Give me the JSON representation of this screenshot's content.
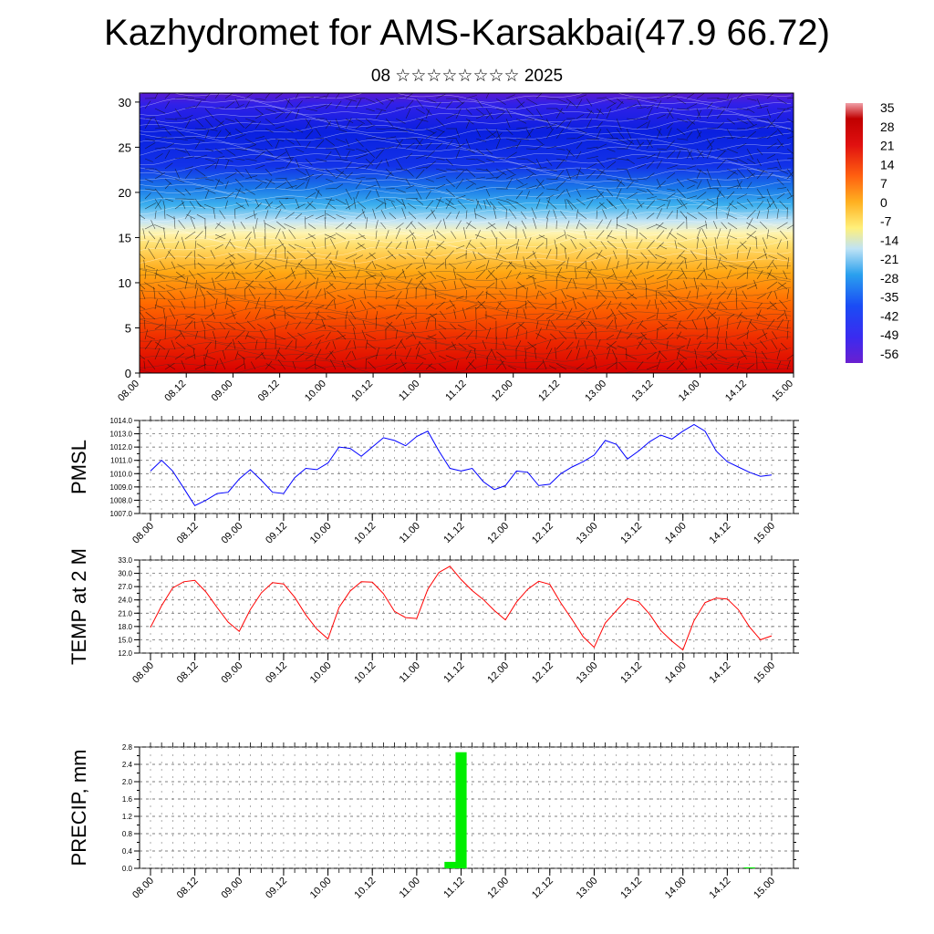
{
  "title": "Kazhydromet for AMS-Karsakbai(47.9 66.72)",
  "subtitle": "08 ☆☆☆☆☆☆☆☆ 2025",
  "chart_data": [
    {
      "type": "heatmap",
      "title": "",
      "x_tick_labels": [
        "08.00",
        "08.12",
        "09.00",
        "09.12",
        "10.00",
        "10.12",
        "11.00",
        "11.12",
        "12.00",
        "12.12",
        "13.00",
        "13.12",
        "14.00",
        "14.12",
        "15.00"
      ],
      "y_ticks": [
        0,
        5,
        10,
        15,
        20,
        25,
        30
      ],
      "ylim": [
        0,
        31
      ],
      "colorbar_labels": [
        "35",
        "28",
        "21",
        "14",
        "7",
        "0",
        "-7",
        "-14",
        "-21",
        "-28",
        "-35",
        "-42",
        "-49",
        "-56"
      ],
      "color_range": [
        -60,
        37
      ],
      "vertical_temperature_profile": [
        {
          "level": 0,
          "value": 30
        },
        {
          "level": 3,
          "value": 26
        },
        {
          "level": 6,
          "value": 20
        },
        {
          "level": 9,
          "value": 13
        },
        {
          "level": 12,
          "value": 6
        },
        {
          "level": 15,
          "value": -5
        },
        {
          "level": 17,
          "value": -14
        },
        {
          "level": 19,
          "value": -25
        },
        {
          "level": 21,
          "value": -35
        },
        {
          "level": 23,
          "value": -45
        },
        {
          "level": 25,
          "value": -50
        },
        {
          "level": 27,
          "value": -52
        },
        {
          "level": 29,
          "value": -54
        },
        {
          "level": 31,
          "value": -58
        }
      ]
    },
    {
      "type": "line",
      "ylabel": "PMSL",
      "ylim": [
        1007.0,
        1014.0
      ],
      "y_tick_labels": [
        "1014.0",
        "1013.0",
        "1012.0",
        "1011.0",
        "1010.0",
        "1009.0",
        "1008.0",
        "1007.0"
      ],
      "x_tick_labels": [
        "08.00",
        "08.12",
        "09.00",
        "09.12",
        "10.00",
        "10.12",
        "11.00",
        "11.12",
        "12.00",
        "12.12",
        "13.00",
        "13.12",
        "14.00",
        "14.12",
        "15.00"
      ],
      "grid": true,
      "series": [
        {
          "color": "#0000ff",
          "values": [
            1010.2,
            1011.0,
            1010.2,
            1008.9,
            1007.6,
            1008.0,
            1008.5,
            1008.6,
            1009.6,
            1010.3,
            1009.5,
            1008.6,
            1008.5,
            1009.7,
            1010.4,
            1010.3,
            1010.8,
            1012.0,
            1011.9,
            1011.3,
            1012.0,
            1012.7,
            1012.5,
            1012.1,
            1012.8,
            1013.2,
            1011.7,
            1010.4,
            1010.2,
            1010.4,
            1009.4,
            1008.8,
            1009.1,
            1010.2,
            1010.1,
            1009.1,
            1009.2,
            1010.0,
            1010.5,
            1010.9,
            1011.4,
            1012.5,
            1012.2,
            1011.1,
            1011.7,
            1012.4,
            1012.9,
            1012.6,
            1013.2,
            1013.7,
            1013.2,
            1011.7,
            1010.9,
            1010.5,
            1010.1,
            1009.8,
            1009.9
          ]
        }
      ]
    },
    {
      "type": "line",
      "ylabel": "TEMP at 2 M",
      "ylim": [
        12.0,
        33.0
      ],
      "y_tick_labels": [
        "33.0",
        "30.0",
        "27.0",
        "24.0",
        "21.0",
        "18.0",
        "15.0",
        "12.0"
      ],
      "x_tick_labels": [
        "08.00",
        "08.12",
        "09.00",
        "09.12",
        "10.00",
        "10.12",
        "11.00",
        "11.12",
        "12.00",
        "12.12",
        "13.00",
        "13.12",
        "14.00",
        "14.12",
        "15.00"
      ],
      "grid": true,
      "series": [
        {
          "color": "#ff0000",
          "values": [
            17.8,
            22.7,
            26.7,
            28.1,
            28.4,
            25.8,
            22.3,
            19.0,
            16.9,
            21.8,
            25.6,
            27.9,
            27.6,
            24.6,
            20.6,
            17.4,
            15.2,
            22.3,
            26.0,
            28.1,
            28.0,
            25.4,
            21.4,
            20.0,
            19.8,
            26.4,
            30.2,
            31.6,
            28.6,
            26.1,
            24.1,
            21.6,
            19.5,
            23.5,
            26.4,
            28.2,
            27.5,
            23.3,
            19.6,
            15.7,
            13.3,
            18.8,
            21.6,
            24.3,
            23.6,
            20.8,
            17.1,
            14.7,
            12.7,
            19.3,
            23.4,
            24.4,
            24.2,
            21.8,
            17.9,
            15.0,
            15.9
          ]
        }
      ]
    },
    {
      "type": "bar",
      "ylabel": "PRECIP, mm",
      "ylim": [
        0.0,
        2.8
      ],
      "y_tick_labels": [
        "2.8",
        "2.4",
        "2.0",
        "1.6",
        "1.2",
        "0.8",
        "0.4",
        "0.0"
      ],
      "x_tick_labels": [
        "08.00",
        "08.12",
        "09.00",
        "09.12",
        "10.00",
        "10.12",
        "11.00",
        "11.12",
        "12.00",
        "12.12",
        "13.00",
        "13.12",
        "14.00",
        "14.12",
        "15.00"
      ],
      "grid": true,
      "series": [
        {
          "color": "#00ee00",
          "values": [
            0,
            0,
            0,
            0,
            0,
            0,
            0,
            0,
            0,
            0,
            0,
            0,
            0,
            0,
            0,
            0,
            0,
            0,
            0,
            0,
            0,
            0,
            0,
            0,
            0,
            0,
            0,
            0.15,
            2.68,
            0,
            0,
            0,
            0,
            0,
            0,
            0,
            0,
            0,
            0,
            0,
            0,
            0,
            0,
            0,
            0,
            0,
            0,
            0,
            0,
            0,
            0,
            0,
            0,
            0,
            0.02,
            0,
            0
          ]
        }
      ]
    }
  ]
}
